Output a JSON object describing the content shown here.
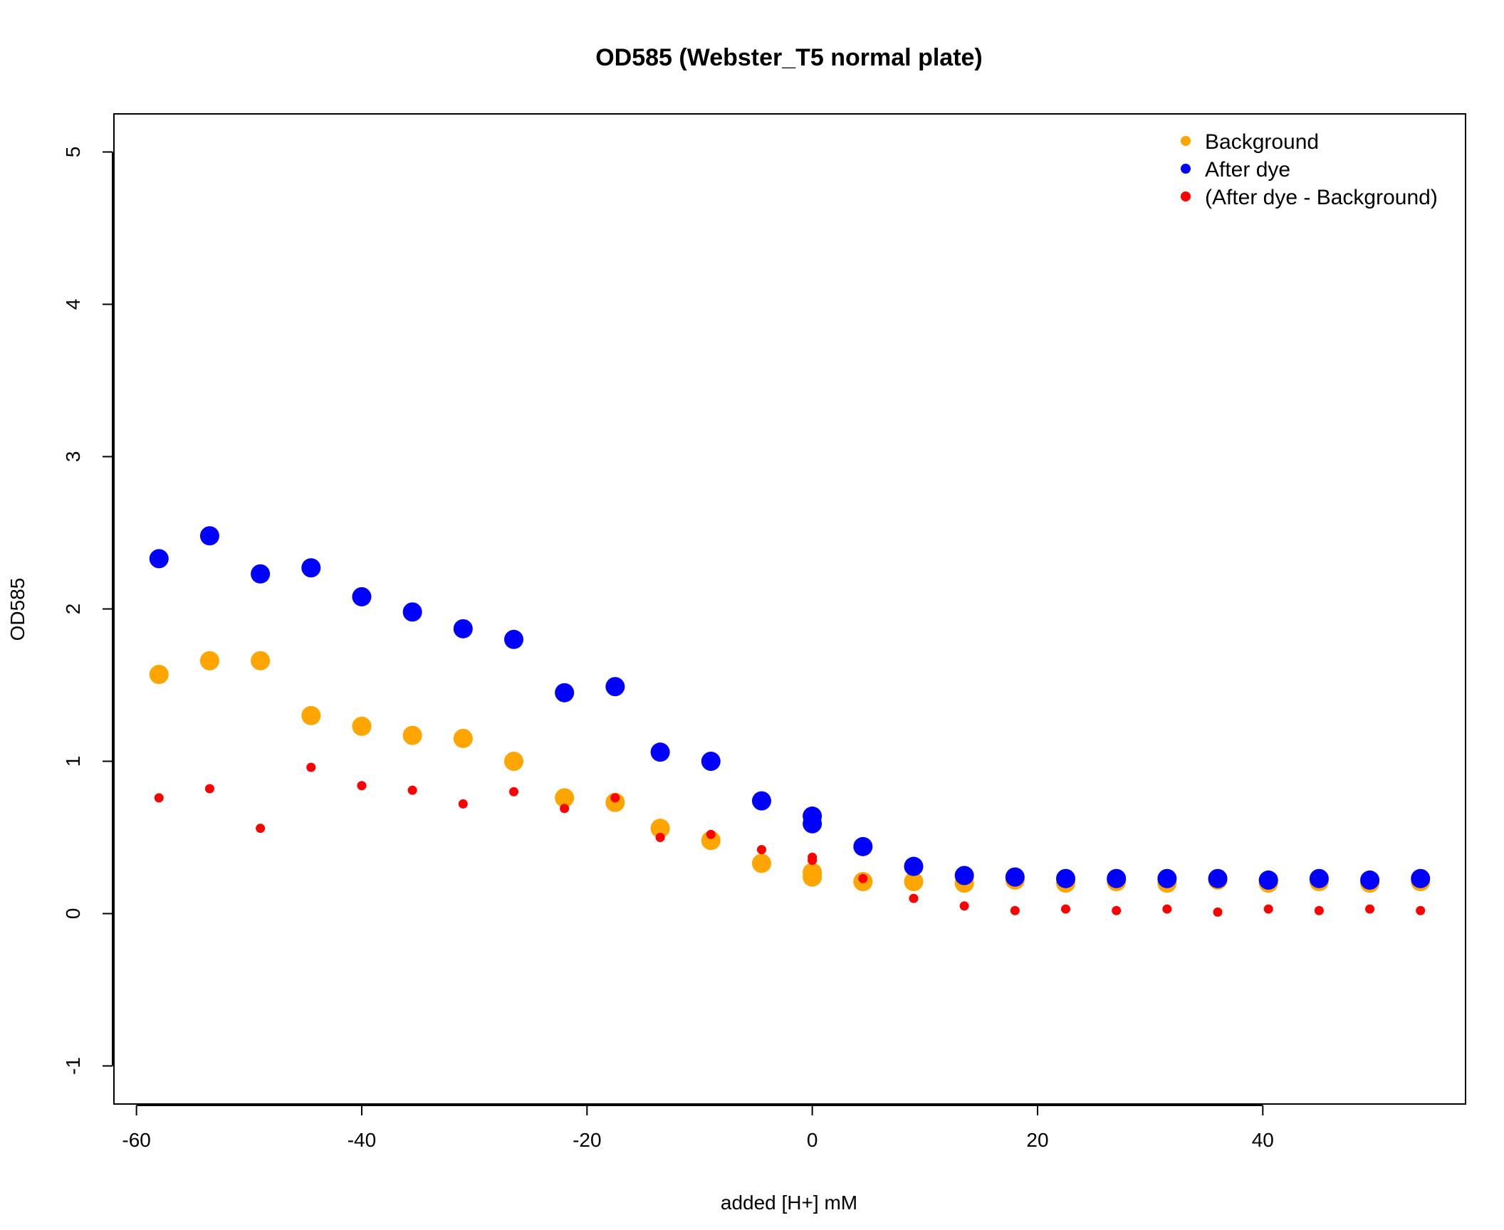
{
  "chart_data": {
    "type": "scatter",
    "title": "OD585 (Webster_T5 normal plate)",
    "xlabel": "added [H+] mM",
    "ylabel": "OD585",
    "xlim": [
      -62,
      58
    ],
    "ylim": [
      -1.25,
      5.25
    ],
    "x_ticks": [
      -60,
      -40,
      -20,
      0,
      20,
      40
    ],
    "x_tick_labels": [
      "-60",
      "-40",
      "-20",
      "0",
      "20",
      "40"
    ],
    "y_ticks": [
      -1,
      0,
      1,
      2,
      3,
      4,
      5
    ],
    "y_tick_labels": [
      "-1",
      "0",
      "1",
      "2",
      "3",
      "4",
      "5"
    ],
    "grid": false,
    "legend_position": "top-right",
    "x": [
      -58,
      -53.5,
      -49,
      -44.5,
      -40,
      -35.5,
      -31,
      -26.5,
      -22,
      -17.5,
      -13.5,
      -9,
      -4.5,
      0,
      0,
      4.5,
      9,
      13.5,
      18,
      22.5,
      27,
      31.5,
      36,
      40.5,
      45,
      49.5,
      54
    ],
    "series": [
      {
        "name": "Background",
        "color": "#FFA500",
        "marker_size": "large",
        "values": [
          1.57,
          1.66,
          1.66,
          1.3,
          1.23,
          1.17,
          1.15,
          1.0,
          0.76,
          0.73,
          0.56,
          0.48,
          0.33,
          0.27,
          0.24,
          0.21,
          0.21,
          0.2,
          0.22,
          0.2,
          0.21,
          0.2,
          0.22,
          0.2,
          0.21,
          0.2,
          0.21
        ]
      },
      {
        "name": "After dye",
        "color": "#0000FF",
        "marker_size": "large",
        "values": [
          2.33,
          2.48,
          2.23,
          2.27,
          2.08,
          1.98,
          1.87,
          1.8,
          1.45,
          1.49,
          1.06,
          1.0,
          0.74,
          0.64,
          0.59,
          0.44,
          0.31,
          0.25,
          0.24,
          0.23,
          0.23,
          0.23,
          0.23,
          0.22,
          0.23,
          0.22,
          0.23
        ]
      },
      {
        "name": "(After dye - Background)",
        "color": "#FF0000",
        "marker_size": "small",
        "values": [
          0.76,
          0.82,
          0.56,
          0.96,
          0.84,
          0.81,
          0.72,
          0.8,
          0.69,
          0.76,
          0.5,
          0.52,
          0.42,
          0.37,
          0.35,
          0.23,
          0.1,
          0.05,
          0.02,
          0.03,
          0.02,
          0.03,
          0.01,
          0.03,
          0.02,
          0.03,
          0.02
        ]
      }
    ]
  }
}
